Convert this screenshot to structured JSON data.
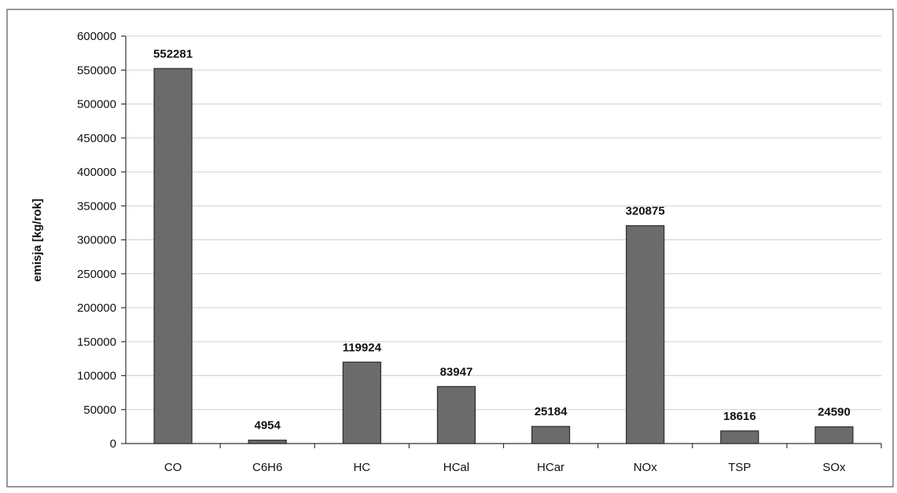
{
  "chart_data": {
    "type": "bar",
    "categories": [
      "CO",
      "C6H6",
      "HC",
      "HCal",
      "HCar",
      "NOx",
      "TSP",
      "SOx"
    ],
    "values": [
      552281,
      4954,
      119924,
      83947,
      25184,
      320875,
      18616,
      24590
    ],
    "data_labels": [
      "552281",
      "4954",
      "119924",
      "83947",
      "25184",
      "320875",
      "18616",
      "24590"
    ],
    "ylabel": "emisja [kg/rok]",
    "xlabel": "",
    "ylim": [
      0,
      600000
    ],
    "yticks": [
      0,
      50000,
      100000,
      150000,
      200000,
      250000,
      300000,
      350000,
      400000,
      450000,
      500000,
      550000,
      600000
    ],
    "grid": true,
    "legend": "none",
    "colors": {
      "bar": "#6b6b6b",
      "bar_edge": "#2b2b2b",
      "grid": "#cfcfcf",
      "axis": "#333333",
      "frame": "#444444"
    }
  }
}
